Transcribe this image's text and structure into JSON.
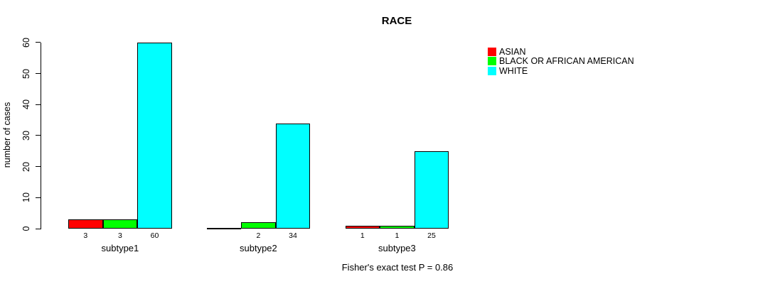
{
  "chart": {
    "title": "RACE",
    "ylabel": "number of cases",
    "footnote": "Fisher's exact test P = 0.86"
  },
  "chart_data": {
    "type": "bar",
    "title": "RACE",
    "xlabel": "",
    "ylabel": "number of cases",
    "categories": [
      "subtype1",
      "subtype2",
      "subtype3"
    ],
    "series": [
      {
        "name": "ASIAN",
        "color": "#ff0000",
        "values": [
          3,
          0,
          1
        ]
      },
      {
        "name": "BLACK OR AFRICAN AMERICAN",
        "color": "#00ff00",
        "values": [
          3,
          2,
          1
        ]
      },
      {
        "name": "WHITE",
        "color": "#00ffff",
        "values": [
          60,
          34,
          25
        ]
      }
    ],
    "value_labels": [
      [
        "3",
        "3",
        "60"
      ],
      [
        "",
        "2",
        "34"
      ],
      [
        "1",
        "1",
        "25"
      ]
    ],
    "yticks": [
      0,
      10,
      20,
      30,
      40,
      50,
      60
    ],
    "ylim": [
      0,
      60
    ],
    "grid": false,
    "legend_position": "top-right",
    "annotation": "Fisher's exact test P = 0.86"
  }
}
